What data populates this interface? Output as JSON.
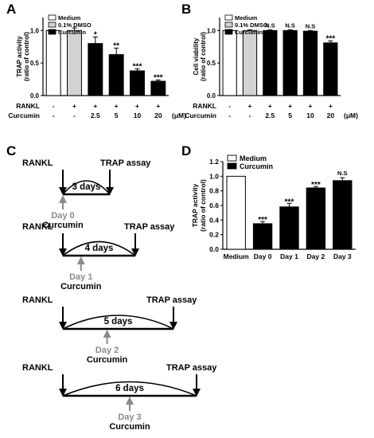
{
  "chart_data": [
    {
      "panel": "A",
      "type": "bar",
      "ylabel_line1": "TRAP activity",
      "ylabel_line2": "(ratio of control)",
      "ylim": [
        0,
        1.2
      ],
      "yticks": [
        "0.0",
        "0.5",
        "1.0"
      ],
      "legend": [
        "Medium",
        "0.1% DMSO",
        "Curcumin"
      ],
      "values": [
        1.0,
        1.0,
        0.8,
        0.63,
        0.38,
        0.22
      ],
      "errors": [
        0.0,
        0.04,
        0.1,
        0.1,
        0.03,
        0.02
      ],
      "fills": [
        "#ffffff",
        "#d3d3d3",
        "#000000",
        "#000000",
        "#000000",
        "#000000"
      ],
      "significance": [
        "",
        "",
        "*",
        "**",
        "***",
        "***"
      ],
      "row_labels": [
        "RANKL",
        "Curcumin"
      ],
      "rankl_row": [
        "-",
        "+",
        "+",
        "+",
        "+",
        "+"
      ],
      "curcumin_row": [
        "-",
        "-",
        "2.5",
        "5",
        "10",
        "20"
      ],
      "unit": "(μM)"
    },
    {
      "panel": "B",
      "type": "bar",
      "ylabel_line1": "Cell viability",
      "ylabel_line2": "(ratio of control)",
      "ylim": [
        0,
        1.2
      ],
      "yticks": [
        "0.0",
        "0.5",
        "1.0"
      ],
      "legend": [
        "Medium",
        "0.1% DMSO",
        "Curcumin"
      ],
      "values": [
        1.0,
        1.0,
        1.0,
        1.0,
        0.99,
        0.81
      ],
      "errors": [
        0.0,
        0.01,
        0.01,
        0.01,
        0.01,
        0.03
      ],
      "fills": [
        "#ffffff",
        "#d3d3d3",
        "#000000",
        "#000000",
        "#000000",
        "#000000"
      ],
      "significance": [
        "",
        "",
        "N.S",
        "N.S",
        "N.S",
        "***"
      ],
      "row_labels": [
        "RANKL",
        "Curcumin"
      ],
      "rankl_row": [
        "-",
        "+",
        "+",
        "+",
        "+",
        "+"
      ],
      "curcumin_row": [
        "-",
        "-",
        "2.5",
        "5",
        "10",
        "20"
      ],
      "unit": "(μM)"
    },
    {
      "panel": "D",
      "type": "bar",
      "ylabel_line1": "TRAP activity",
      "ylabel_line2": "(ratio of control)",
      "ylim": [
        0,
        1.2
      ],
      "yticks": [
        "0.0",
        "0.2",
        "0.4",
        "0.6",
        "0.8",
        "1.0",
        "1.2"
      ],
      "legend": [
        "Medium",
        "Curcumin"
      ],
      "categories": [
        "Medium",
        "Day 0",
        "Day 1",
        "Day 2",
        "Day 3"
      ],
      "values": [
        1.0,
        0.35,
        0.58,
        0.84,
        0.94
      ],
      "errors": [
        0.0,
        0.03,
        0.05,
        0.02,
        0.04
      ],
      "fills": [
        "#ffffff",
        "#000000",
        "#000000",
        "#000000",
        "#000000"
      ],
      "significance": [
        "",
        "***",
        "***",
        "***",
        "N.S"
      ]
    }
  ],
  "timeline": {
    "panel": "C",
    "start_label": "RANKL",
    "end_label": "TRAP assay",
    "treatment_label": "Curcumin",
    "rows": [
      {
        "duration": "3 days",
        "day": "Day 0"
      },
      {
        "duration": "4 days",
        "day": "Day 1"
      },
      {
        "duration": "5 days",
        "day": "Day 2"
      },
      {
        "duration": "6 days",
        "day": "Day 3"
      }
    ]
  }
}
